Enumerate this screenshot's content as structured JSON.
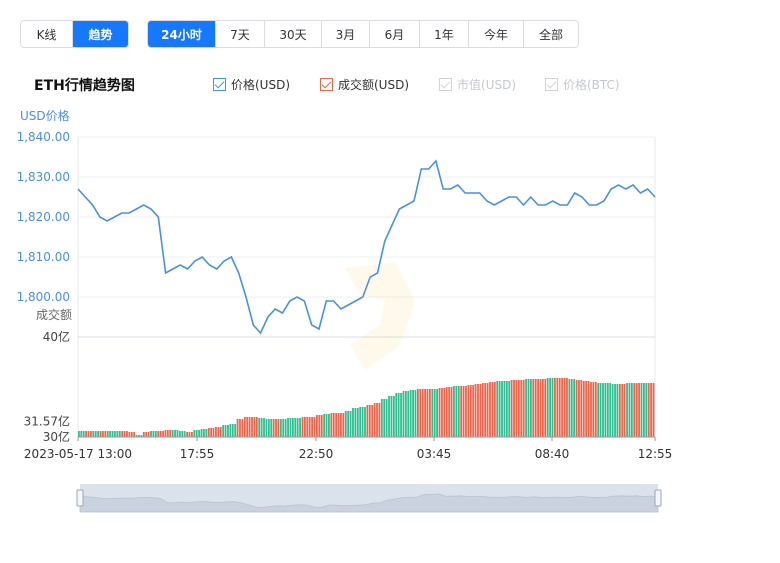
{
  "view_toggle": {
    "kline": "K线",
    "trend": "趋势"
  },
  "ranges": [
    "24小时",
    "7天",
    "30天",
    "3月",
    "6月",
    "1年",
    "今年",
    "全部"
  ],
  "active_range": "24小时",
  "chart_data": {
    "type": "line",
    "title": "ETH行情趋势图",
    "legend": [
      {
        "name": "价格(USD)",
        "checked": true,
        "color": "#4a90e2"
      },
      {
        "name": "成交额(USD)",
        "checked": true,
        "color": "#e8664a"
      },
      {
        "name": "市值(USD)",
        "checked": false,
        "color": "#d0d4da"
      },
      {
        "name": "价格(BTC)",
        "checked": false,
        "color": "#d0d4da"
      }
    ],
    "price_axis_title": "USD价格",
    "price_ticks": [
      "1,840.00",
      "1,830.00",
      "1,820.00",
      "1,810.00",
      "1,800.00"
    ],
    "price_ylim": [
      1790,
      1840
    ],
    "volume_axis_title": "成交额",
    "volume_ticks": [
      "40亿",
      "31.57亿",
      "30亿"
    ],
    "volume_ylim": [
      30,
      40
    ],
    "x_ticks": [
      "2023-05-17 13:00",
      "17:55",
      "22:50",
      "03:45",
      "08:40",
      "12:55"
    ],
    "price_series": {
      "name": "价格(USD)",
      "color": "#4a90e2",
      "values": [
        1827,
        1825,
        1823,
        1820,
        1819,
        1820,
        1821,
        1821,
        1822,
        1823,
        1822,
        1820,
        1806,
        1807,
        1808,
        1807,
        1809,
        1810,
        1808,
        1807,
        1809,
        1810,
        1806,
        1800,
        1793,
        1791,
        1795,
        1797,
        1796,
        1799,
        1800,
        1799,
        1793,
        1792,
        1799,
        1799,
        1797,
        1798,
        1799,
        1800,
        1805,
        1806,
        1814,
        1818,
        1822,
        1823,
        1824,
        1832,
        1832,
        1834,
        1827,
        1827,
        1828,
        1826,
        1826,
        1826,
        1824,
        1823,
        1824,
        1825,
        1825,
        1823,
        1825,
        1823,
        1823,
        1824,
        1823,
        1823,
        1826,
        1825,
        1823,
        1823,
        1824,
        1827,
        1828,
        1827,
        1828,
        1826,
        1827,
        1825
      ]
    },
    "volume_series": {
      "name": "成交额(USD)",
      "up_color": "#2fbe8f",
      "down_color": "#f0634a",
      "values": [
        30.6,
        30.6,
        30.6,
        30.6,
        30.6,
        30.6,
        30.6,
        30.5,
        30.2,
        30.5,
        30.6,
        30.6,
        30.7,
        30.7,
        30.6,
        30.5,
        30.7,
        30.8,
        30.9,
        31.0,
        31.2,
        31.3,
        31.8,
        32.0,
        32.0,
        31.9,
        31.8,
        31.8,
        31.8,
        31.9,
        31.9,
        32.0,
        32.0,
        32.2,
        32.3,
        32.4,
        32.4,
        32.6,
        32.9,
        33.0,
        33.2,
        33.4,
        33.8,
        34.1,
        34.4,
        34.6,
        34.7,
        34.8,
        34.8,
        34.8,
        34.9,
        35.0,
        35.1,
        35.1,
        35.2,
        35.3,
        35.4,
        35.5,
        35.6,
        35.6,
        35.7,
        35.7,
        35.8,
        35.8,
        35.8,
        35.9,
        35.9,
        35.9,
        35.8,
        35.7,
        35.6,
        35.5,
        35.4,
        35.4,
        35.3,
        35.3,
        35.4,
        35.4,
        35.4,
        35.4
      ],
      "up": [
        true,
        false,
        true,
        false,
        true,
        true,
        false,
        false,
        true,
        false,
        true,
        false,
        false,
        true,
        true,
        false,
        true,
        true,
        false,
        false,
        true,
        true,
        false,
        false,
        false,
        true,
        true,
        false,
        true,
        true,
        true,
        false,
        false,
        false,
        true,
        false,
        false,
        true,
        true,
        true,
        false,
        false,
        true,
        true,
        true,
        true,
        true,
        false,
        false,
        true,
        false,
        false,
        true,
        false,
        false,
        false,
        false,
        false,
        true,
        true,
        false,
        false,
        true,
        false,
        false,
        true,
        false,
        false,
        true,
        false,
        false,
        false,
        true,
        true,
        true,
        false,
        true,
        false,
        true,
        false
      ]
    }
  }
}
